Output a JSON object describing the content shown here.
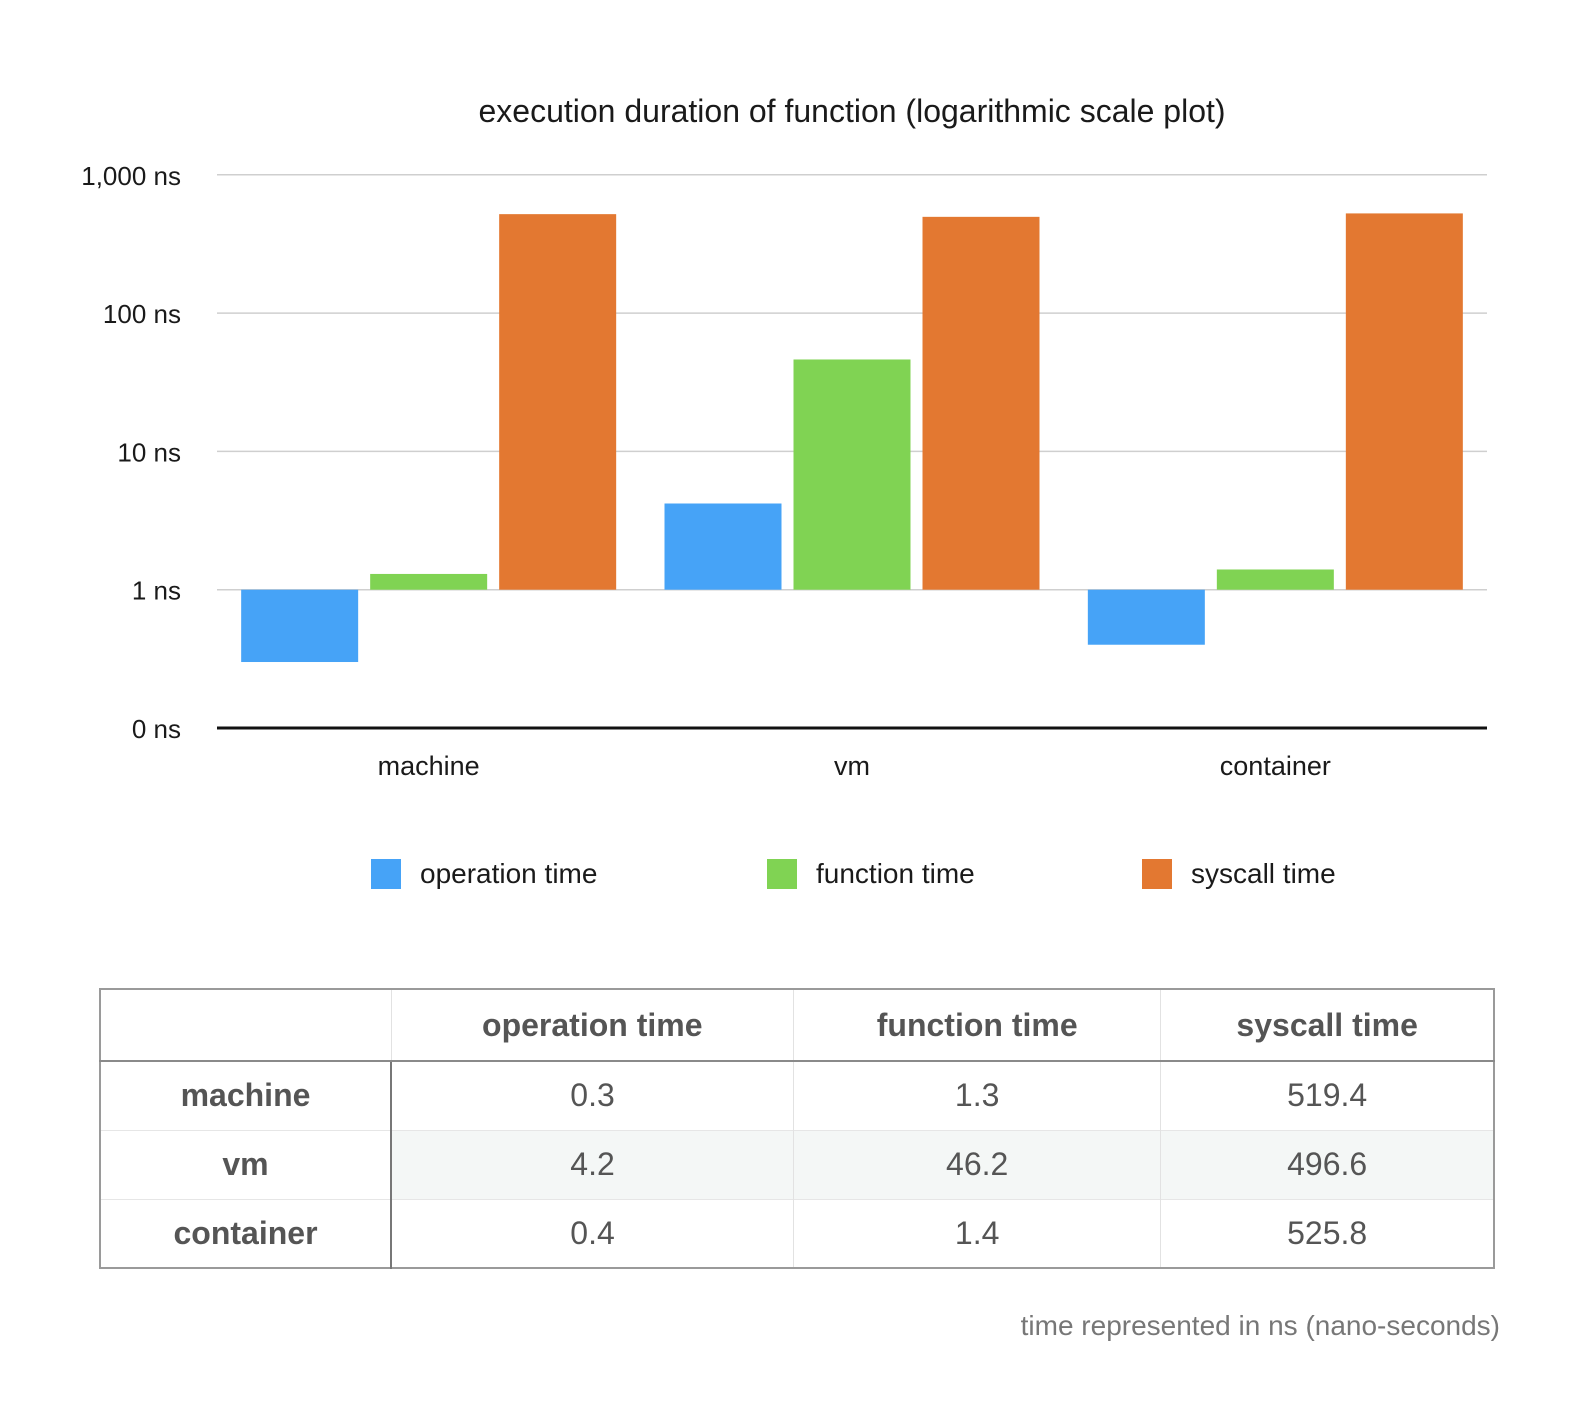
{
  "chart_data": {
    "type": "bar",
    "title": "execution duration of function (logarithmic scale plot)",
    "categories": [
      "machine",
      "vm",
      "container"
    ],
    "series": [
      {
        "name": "operation time",
        "values": [
          0.3,
          4.2,
          0.4
        ],
        "color": "#46a3f7"
      },
      {
        "name": "function time",
        "values": [
          1.3,
          46.2,
          1.4
        ],
        "color": "#80d353"
      },
      {
        "name": "syscall time",
        "values": [
          519.4,
          496.6,
          525.8
        ],
        "color": "#e37831"
      }
    ],
    "y_scale": "log",
    "y_ticks": [
      {
        "label": "0 ns"
      },
      {
        "label": "1 ns",
        "value": 1
      },
      {
        "label": "10 ns",
        "value": 10
      },
      {
        "label": "100 ns",
        "value": 100
      },
      {
        "label": "1,000 ns",
        "value": 1000
      }
    ],
    "grid": true,
    "legend_position": "bottom"
  },
  "table": {
    "headers": [
      "operation time",
      "function time",
      "syscall time"
    ],
    "rows": [
      {
        "label": "machine",
        "values": [
          "0.3",
          "1.3",
          "519.4"
        ]
      },
      {
        "label": "vm",
        "values": [
          "4.2",
          "46.2",
          "496.6"
        ]
      },
      {
        "label": "container",
        "values": [
          "0.4",
          "1.4",
          "525.8"
        ]
      }
    ]
  },
  "footnote": "time represented in ns (nano-seconds)"
}
